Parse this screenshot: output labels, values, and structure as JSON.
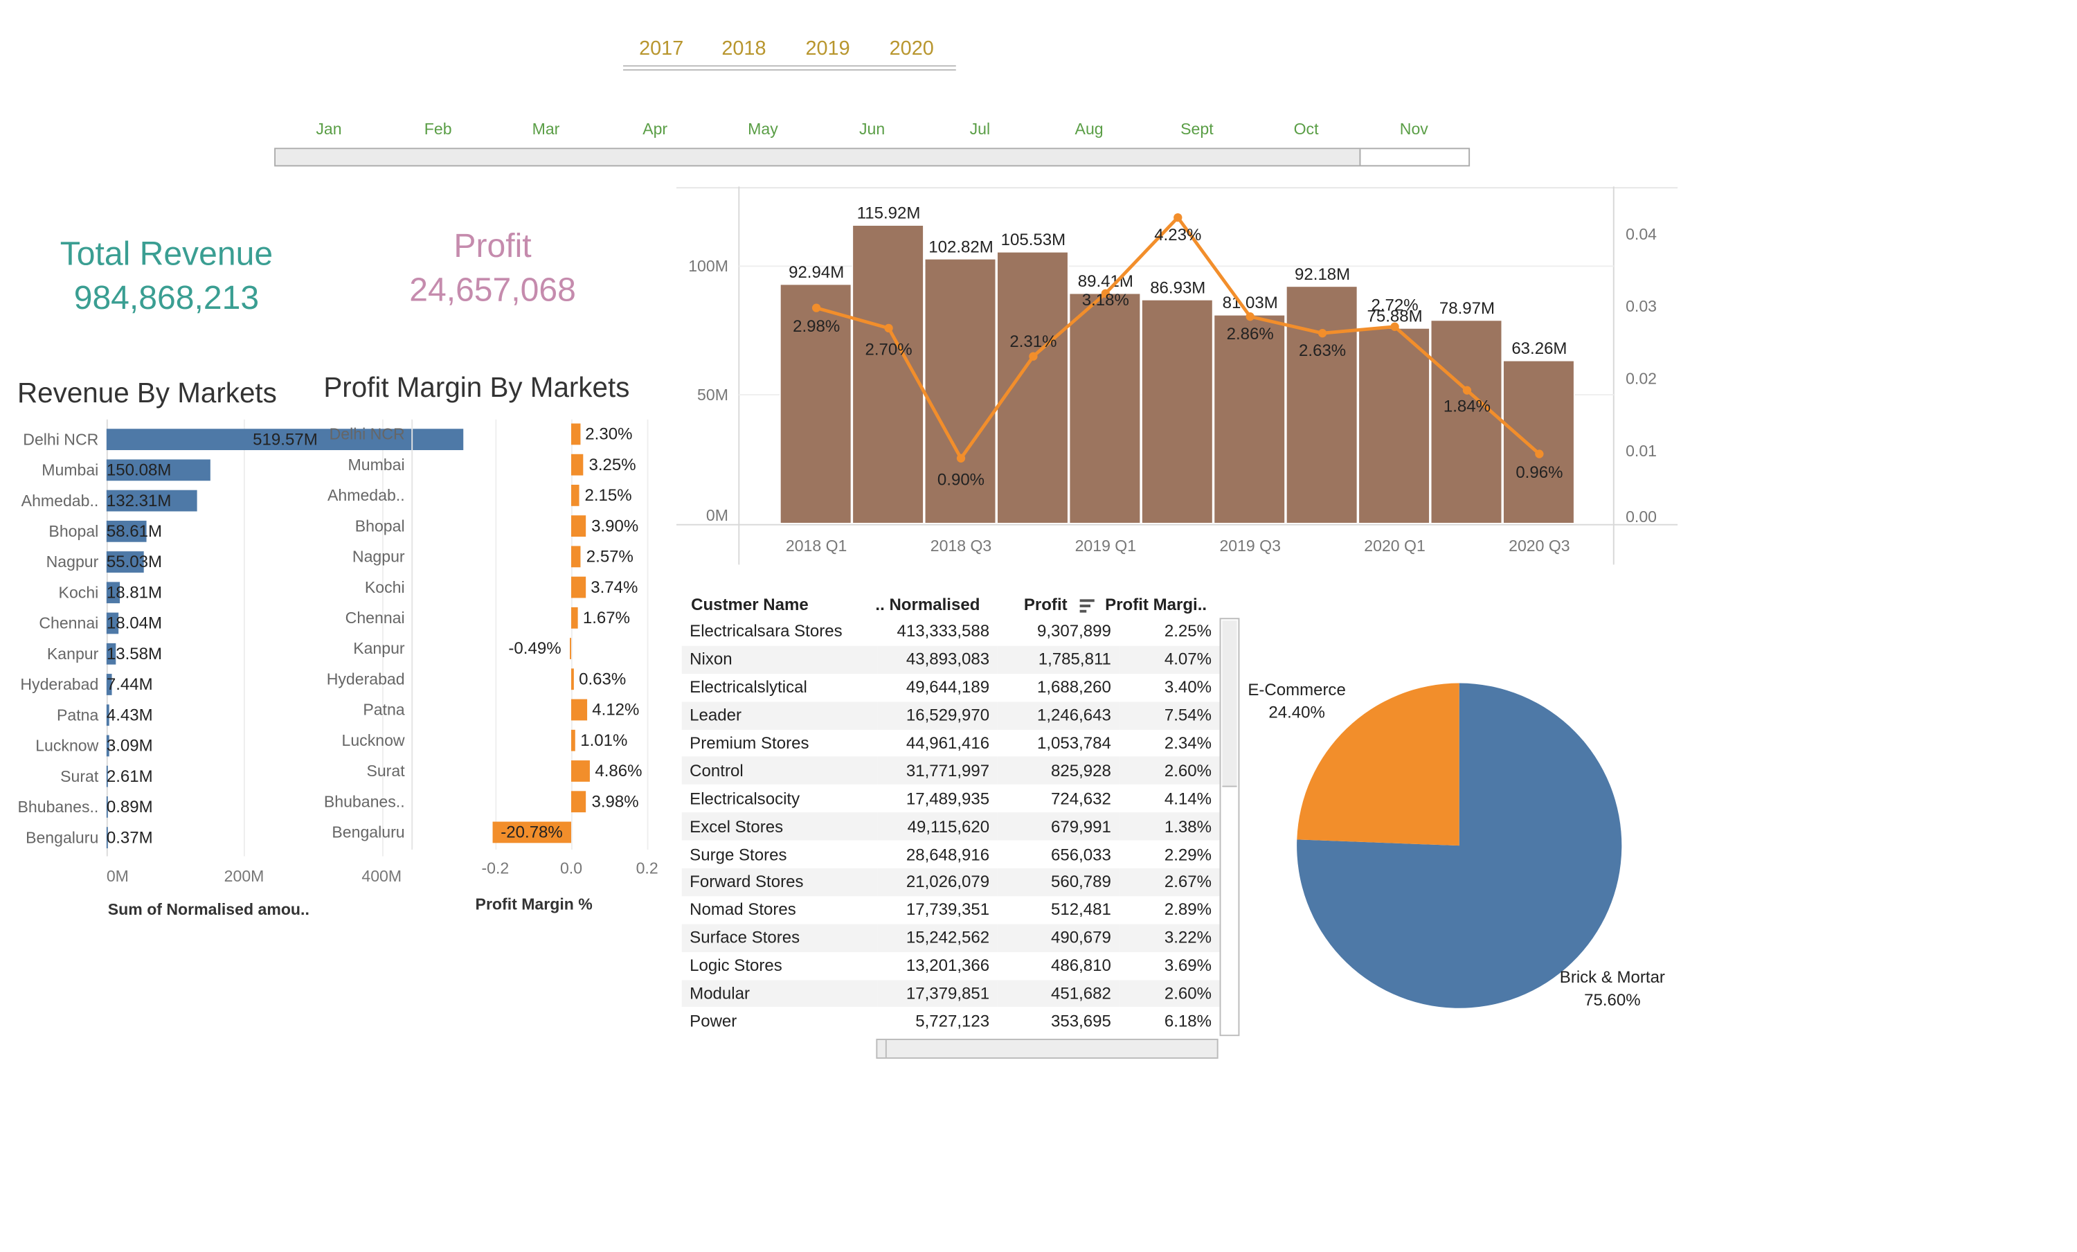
{
  "years": [
    "2017",
    "2018",
    "2019",
    "2020"
  ],
  "months": [
    "Jan",
    "Feb",
    "Mar",
    "Apr",
    "May",
    "Jun",
    "Jul",
    "Aug",
    "Sept",
    "Oct",
    "Nov"
  ],
  "month_slider_level": 0.91,
  "kpis": {
    "revenue": {
      "label": "Total Revenue",
      "value": "984,868,213",
      "color": "#3a9e92"
    },
    "profit": {
      "label": "Profit",
      "value": "24,657,068",
      "color": "#c58bad"
    }
  },
  "revenue_by_markets": {
    "title": "Revenue By Markets",
    "xlabel": "Sum of Normalised amou..",
    "ticks": [
      "0M",
      "200M",
      "400M"
    ],
    "color": "#4e79a7",
    "markets": [
      "Delhi NCR",
      "Mumbai",
      "Ahmedab..",
      "Bhopal",
      "Nagpur",
      "Kochi",
      "Chennai",
      "Kanpur",
      "Hyderabad",
      "Patna",
      "Lucknow",
      "Surat",
      "Bhubanes..",
      "Bengaluru"
    ],
    "values": [
      519.57,
      150.08,
      132.31,
      58.61,
      55.03,
      18.81,
      18.04,
      13.58,
      7.44,
      4.43,
      3.09,
      2.61,
      0.89,
      0.37
    ],
    "labels": [
      "519.57M",
      "150.08M",
      "132.31M",
      "58.61M",
      "55.03M",
      "18.81M",
      "18.04M",
      "13.58M",
      "7.44M",
      "4.43M",
      "3.09M",
      "2.61M",
      "0.89M",
      "0.37M"
    ]
  },
  "profit_margin_by_markets": {
    "title": "Profit Margin By Markets",
    "xlabel": "Profit Margin %",
    "ticks": [
      "-0.2",
      "0.0",
      "0.2"
    ],
    "color": "#f28e2b",
    "markets": [
      "Delhi NCR",
      "Mumbai",
      "Ahmedab..",
      "Bhopal",
      "Nagpur",
      "Kochi",
      "Chennai",
      "Kanpur",
      "Hyderabad",
      "Patna",
      "Lucknow",
      "Surat",
      "Bhubanes..",
      "Bengaluru"
    ],
    "values": [
      0.023,
      0.0325,
      0.0215,
      0.039,
      0.0257,
      0.0374,
      0.0167,
      -0.0049,
      0.0063,
      0.0412,
      0.0101,
      0.0486,
      0.0398,
      -0.2078
    ],
    "labels": [
      "2.30%",
      "3.25%",
      "2.15%",
      "3.90%",
      "2.57%",
      "3.74%",
      "1.67%",
      "-0.49%",
      "0.63%",
      "4.12%",
      "1.01%",
      "4.86%",
      "3.98%",
      "-20.78%"
    ]
  },
  "chart_data": {
    "type": "bar",
    "categories": [
      "2018 Q1",
      "2018 Q2",
      "2018 Q3",
      "2018 Q4",
      "2019 Q1",
      "2019 Q2",
      "2019 Q3",
      "2019 Q4",
      "2020 Q1",
      "2020 Q2",
      "2020 Q3"
    ],
    "x_tick_labels": [
      "2018 Q1",
      "2018 Q3",
      "2019 Q1",
      "2019 Q3",
      "2020 Q1",
      "2020 Q3"
    ],
    "series": [
      {
        "kind": "bar",
        "axis": "left",
        "color": "#9c755f",
        "values": [
          92.94,
          115.92,
          102.82,
          105.53,
          89.41,
          86.93,
          81.03,
          92.18,
          75.88,
          78.97,
          63.26
        ],
        "labels": [
          "92.94M",
          "115.92M",
          "102.82M",
          "105.53M",
          "89.41M",
          "86.93M",
          "81.03M",
          "92.18M",
          "75.88M",
          "78.97M",
          "63.26M"
        ]
      },
      {
        "kind": "line",
        "axis": "right",
        "color": "#f28e2b",
        "values": [
          0.0298,
          0.027,
          0.009,
          0.0231,
          0.0318,
          0.0423,
          0.0286,
          0.0263,
          0.0272,
          0.0184,
          0.0096
        ],
        "labels": [
          "2.98%",
          "2.70%",
          "0.90%",
          "2.31%",
          "3.18%",
          "4.23%",
          "2.86%",
          "2.63%",
          "2.72%",
          "1.84%",
          "0.96%"
        ]
      }
    ],
    "left_axis": {
      "ticks": [
        "0M",
        "50M",
        "100M"
      ],
      "range": [
        0,
        131
      ]
    },
    "right_axis": {
      "ticks": [
        "0.00",
        "0.01",
        "0.02",
        "0.03",
        "0.04"
      ],
      "range": [
        0,
        0.0466
      ]
    },
    "grid": true
  },
  "customer_table": {
    "headers": [
      "Custmer Name",
      "Normalised ..",
      "Profit",
      "Profit Margi.."
    ],
    "rows": [
      [
        "Electricalsara Stores",
        "413,333,588",
        "9,307,899",
        "2.25%"
      ],
      [
        "Nixon",
        "43,893,083",
        "1,785,811",
        "4.07%"
      ],
      [
        "Electricalslytical",
        "49,644,189",
        "1,688,260",
        "3.40%"
      ],
      [
        "Leader",
        "16,529,970",
        "1,246,643",
        "7.54%"
      ],
      [
        "Premium Stores",
        "44,961,416",
        "1,053,784",
        "2.34%"
      ],
      [
        "Control",
        "31,771,997",
        "825,928",
        "2.60%"
      ],
      [
        "Electricalsocity",
        "17,489,935",
        "724,632",
        "4.14%"
      ],
      [
        "Excel Stores",
        "49,115,620",
        "679,991",
        "1.38%"
      ],
      [
        "Surge Stores",
        "28,648,916",
        "656,033",
        "2.29%"
      ],
      [
        "Forward Stores",
        "21,026,079",
        "560,789",
        "2.67%"
      ],
      [
        "Nomad Stores",
        "17,739,351",
        "512,481",
        "2.89%"
      ],
      [
        "Surface Stores",
        "15,242,562",
        "490,679",
        "3.22%"
      ],
      [
        "Logic Stores",
        "13,201,366",
        "486,810",
        "3.69%"
      ],
      [
        "Modular",
        "17,379,851",
        "451,682",
        "2.60%"
      ],
      [
        "Power",
        "5,727,123",
        "353,695",
        "6.18%"
      ]
    ]
  },
  "channel_pie": {
    "slices": [
      {
        "name": "Brick & Mortar",
        "value": 0.756,
        "label": "75.60%",
        "color": "#4e79a7"
      },
      {
        "name": "E-Commerce",
        "value": 0.244,
        "label": "24.40%",
        "color": "#f28e2b"
      }
    ]
  }
}
